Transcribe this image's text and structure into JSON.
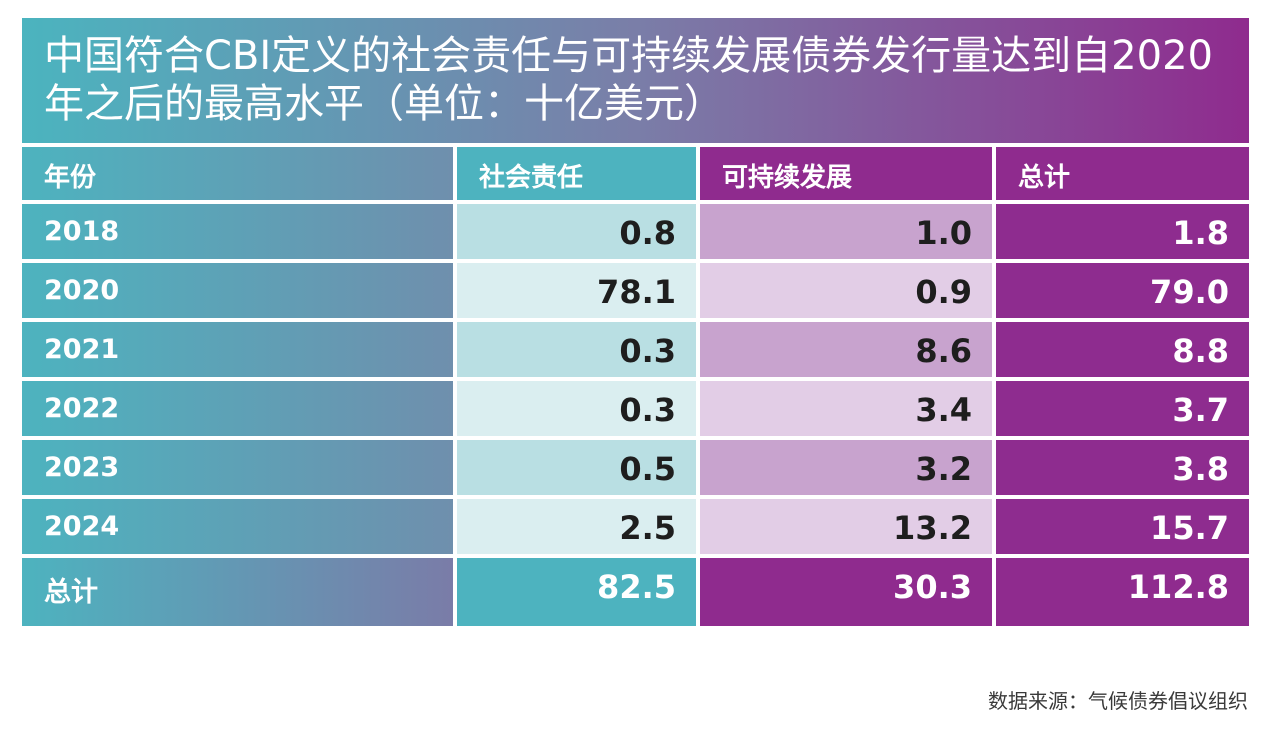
{
  "title": "中国符合CBI定义的社会责任与可持续发展债券发行量达到自2020年之后的最高水平（单位：十亿美元）",
  "source": "数据来源：气候债券倡议组织",
  "colors": {
    "teal": "#4db3bf",
    "purple": "#8f2b8e",
    "teal_light": "#daeef0",
    "teal_mid": "#b9dfe3",
    "purple_light": "#e2cde6",
    "purple_mid": "#c8a3ce"
  },
  "chart_data": {
    "type": "table",
    "title": "中国符合CBI定义的社会责任与可持续发展债券发行量达到自2020年之后的最高水平（单位：十亿美元）",
    "columns": [
      "年份",
      "社会责任",
      "可持续发展",
      "总计"
    ],
    "rows": [
      [
        "2018",
        "0.8",
        "1.0",
        "1.8"
      ],
      [
        "2020",
        "78.1",
        "0.9",
        "79.0"
      ],
      [
        "2021",
        "0.3",
        "8.6",
        "8.8"
      ],
      [
        "2022",
        "0.3",
        "3.4",
        "3.7"
      ],
      [
        "2023",
        "0.5",
        "3.2",
        "3.8"
      ],
      [
        "2024",
        "2.5",
        "13.2",
        "15.7"
      ]
    ],
    "footer": [
      "总计",
      "82.5",
      "30.3",
      "112.8"
    ],
    "unit": "十亿美元"
  }
}
